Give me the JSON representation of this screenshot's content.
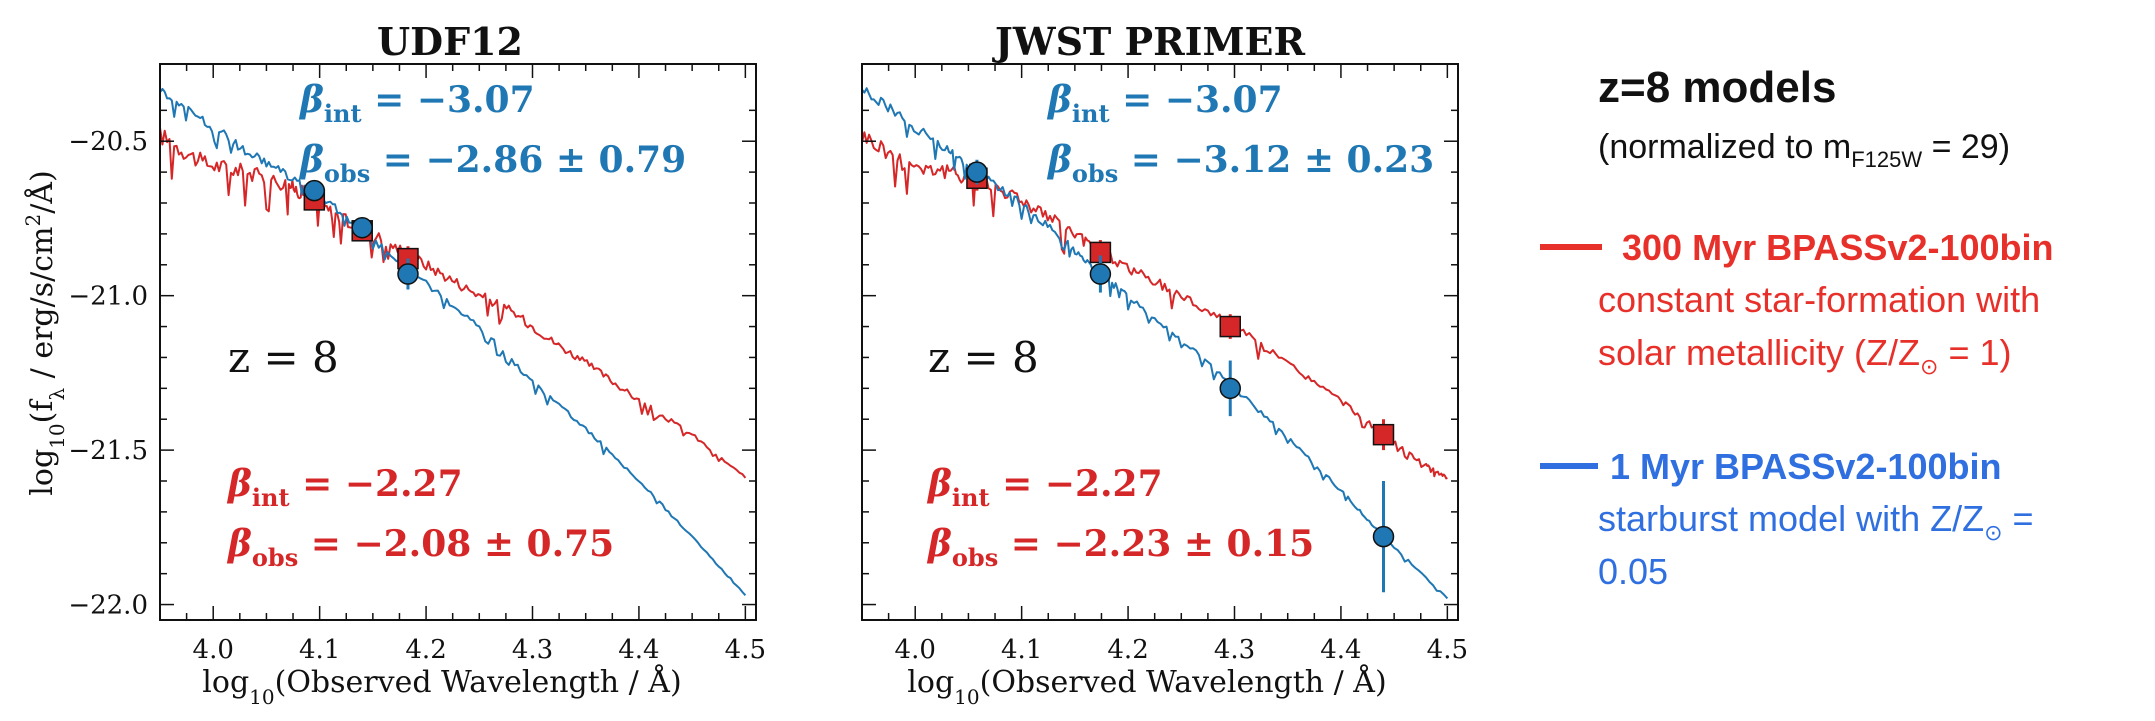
{
  "chart_data": [
    {
      "type": "line",
      "title": "UDF12",
      "xlabel": "log10(Observed Wavelength / Å)",
      "ylabel": "log10(fλ / erg/s/cm²/Å)",
      "xlim": [
        3.95,
        4.51
      ],
      "ylim": [
        -22.05,
        -20.25
      ],
      "xticks": [
        "4.0",
        "4.1",
        "4.2",
        "4.3",
        "4.4",
        "4.5"
      ],
      "yticks": [
        "-20.5",
        "-21.0",
        "-21.5",
        "-22.0"
      ],
      "annotation": "z = 8",
      "series": [
        {
          "name": "300 Myr BPASSv2-100bin",
          "color": "#d62728",
          "x": [
            3.95,
            3.99,
            4.03,
            4.07,
            4.09,
            4.12,
            4.16,
            4.2,
            4.24,
            4.28,
            4.32,
            4.36,
            4.4,
            4.45,
            4.5
          ],
          "y": [
            -20.48,
            -20.57,
            -20.6,
            -20.64,
            -20.68,
            -20.75,
            -20.82,
            -20.9,
            -20.98,
            -21.05,
            -21.15,
            -21.24,
            -21.34,
            -21.45,
            -21.59
          ]
        },
        {
          "name": "1 Myr BPASSv2-100bin",
          "color": "#1f77b4",
          "x": [
            3.95,
            3.99,
            4.03,
            4.07,
            4.11,
            4.15,
            4.2,
            4.25,
            4.3,
            4.35,
            4.4,
            4.45,
            4.5
          ],
          "y": [
            -20.33,
            -20.43,
            -20.53,
            -20.61,
            -20.7,
            -20.82,
            -20.96,
            -21.1,
            -21.28,
            -21.43,
            -21.6,
            -21.78,
            -21.97
          ]
        }
      ],
      "points": [
        {
          "series": "300 Myr BPASSv2-100bin",
          "marker": "square",
          "x": 4.095,
          "y": -20.69,
          "err": 0.03
        },
        {
          "series": "300 Myr BPASSv2-100bin",
          "marker": "square",
          "x": 4.14,
          "y": -20.79,
          "err": 0.03
        },
        {
          "series": "300 Myr BPASSv2-100bin",
          "marker": "square",
          "x": 4.183,
          "y": -20.88,
          "err": 0.04
        },
        {
          "series": "1 Myr BPASSv2-100bin",
          "marker": "circle",
          "x": 4.095,
          "y": -20.66,
          "err": 0.03
        },
        {
          "series": "1 Myr BPASSv2-100bin",
          "marker": "circle",
          "x": 4.14,
          "y": -20.78,
          "err": 0.03
        },
        {
          "series": "1 Myr BPASSv2-100bin",
          "marker": "circle",
          "x": 4.183,
          "y": -20.93,
          "err": 0.05
        }
      ],
      "beta_labels": {
        "blue": {
          "int": "−3.07",
          "obs": "−2.86 ± 0.79"
        },
        "red": {
          "int": "−2.27",
          "obs": "−2.08 ± 0.75"
        }
      }
    },
    {
      "type": "line",
      "title": "JWST PRIMER",
      "xlabel": "log10(Observed Wavelength / Å)",
      "ylabel": "",
      "xlim": [
        3.95,
        4.51
      ],
      "ylim": [
        -22.05,
        -20.25
      ],
      "xticks": [
        "4.0",
        "4.1",
        "4.2",
        "4.3",
        "4.4",
        "4.5"
      ],
      "yticks": [],
      "annotation": "z = 8",
      "series": [
        {
          "name": "300 Myr BPASSv2-100bin",
          "color": "#d62728",
          "x": [
            3.95,
            3.99,
            4.03,
            4.06,
            4.1,
            4.14,
            4.17,
            4.21,
            4.25,
            4.3,
            4.35,
            4.4,
            4.44,
            4.48,
            4.5
          ],
          "y": [
            -20.48,
            -20.57,
            -20.6,
            -20.62,
            -20.69,
            -20.78,
            -20.85,
            -20.93,
            -21.0,
            -21.1,
            -21.22,
            -21.34,
            -21.45,
            -21.55,
            -21.59
          ]
        },
        {
          "name": "1 Myr BPASSv2-100bin",
          "color": "#1f77b4",
          "x": [
            3.95,
            3.99,
            4.03,
            4.06,
            4.1,
            4.14,
            4.17,
            4.2,
            4.25,
            4.3,
            4.35,
            4.4,
            4.44,
            4.5
          ],
          "y": [
            -20.33,
            -20.43,
            -20.53,
            -20.6,
            -20.7,
            -20.82,
            -20.92,
            -21.0,
            -21.14,
            -21.3,
            -21.46,
            -21.63,
            -21.78,
            -21.98
          ]
        }
      ],
      "points": [
        {
          "series": "300 Myr BPASSv2-100bin",
          "marker": "square",
          "x": 4.058,
          "y": -20.62,
          "err": 0.04
        },
        {
          "series": "300 Myr BPASSv2-100bin",
          "marker": "square",
          "x": 4.174,
          "y": -20.86,
          "err": 0.04
        },
        {
          "series": "300 Myr BPASSv2-100bin",
          "marker": "square",
          "x": 4.296,
          "y": -21.1,
          "err": 0.04
        },
        {
          "series": "300 Myr BPASSv2-100bin",
          "marker": "square",
          "x": 4.44,
          "y": -21.45,
          "err": 0.05
        },
        {
          "series": "1 Myr BPASSv2-100bin",
          "marker": "circle",
          "x": 4.058,
          "y": -20.6,
          "err": 0.04
        },
        {
          "series": "1 Myr BPASSv2-100bin",
          "marker": "circle",
          "x": 4.174,
          "y": -20.93,
          "err": 0.06
        },
        {
          "series": "1 Myr BPASSv2-100bin",
          "marker": "circle",
          "x": 4.296,
          "y": -21.3,
          "err": 0.09
        },
        {
          "series": "1 Myr BPASSv2-100bin",
          "marker": "circle",
          "x": 4.44,
          "y": -21.78,
          "err": 0.18
        }
      ],
      "beta_labels": {
        "blue": {
          "int": "−3.07",
          "obs": "−3.12 ± 0.23"
        },
        "red": {
          "int": "−2.27",
          "obs": "−2.23 ± 0.15"
        }
      }
    }
  ],
  "legend": {
    "heading": "z=8 models",
    "normalization": {
      "prefix": "(normalized to m",
      "subscript": "F125W",
      "suffix": " = 29)"
    },
    "red_model": {
      "name": "300 Myr BPASSv2-100bin",
      "line1": "constant star-formation with",
      "line2_prefix": "solar metallicity (Z/Z",
      "line2_symbol": "⊙",
      "line2_suffix": " = 1)"
    },
    "blue_model": {
      "name": "1 Myr BPASSv2-100bin",
      "line1_prefix": "starburst model with Z/Z",
      "line1_symbol": "⊙",
      "line1_suffix": " =",
      "line2": "0.05"
    }
  },
  "colors": {
    "red": "#d62728",
    "blue": "#1f77b4",
    "legend_red": "#e8302a",
    "legend_blue": "#2f6fe0"
  }
}
